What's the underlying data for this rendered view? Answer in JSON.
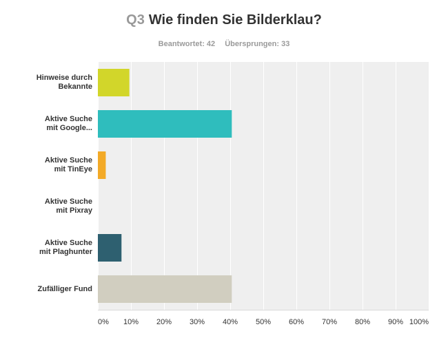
{
  "header": {
    "question_number": "Q3",
    "question_title": "Wie finden Sie Bilderklau?",
    "answered": "Beantwortet: 42",
    "skipped": "Übersprungen: 33"
  },
  "chart_data": {
    "type": "bar",
    "orientation": "horizontal",
    "categories": [
      [
        "Hinweise durch",
        "Bekannte"
      ],
      [
        "Aktive Suche",
        "mit Google..."
      ],
      [
        "Aktive Suche",
        "mit TinEye"
      ],
      [
        "Aktive Suche",
        "mit Pixray"
      ],
      [
        "Aktive Suche",
        "mit Plaghunter"
      ],
      [
        "Zufälliger Fund"
      ]
    ],
    "values": [
      9.52,
      40.48,
      2.38,
      0,
      7.14,
      40.48
    ],
    "unit": "%",
    "xlim": [
      0,
      100
    ],
    "ticks": [
      "0%",
      "10%",
      "20%",
      "30%",
      "40%",
      "50%",
      "60%",
      "70%",
      "80%",
      "90%",
      "100%"
    ],
    "colors": [
      "#d2d62a",
      "#2fbdbd",
      "#f3aa27",
      "#f0f0f0",
      "#2e6070",
      "#d1cec0"
    ],
    "grid": true,
    "legend": "none"
  }
}
